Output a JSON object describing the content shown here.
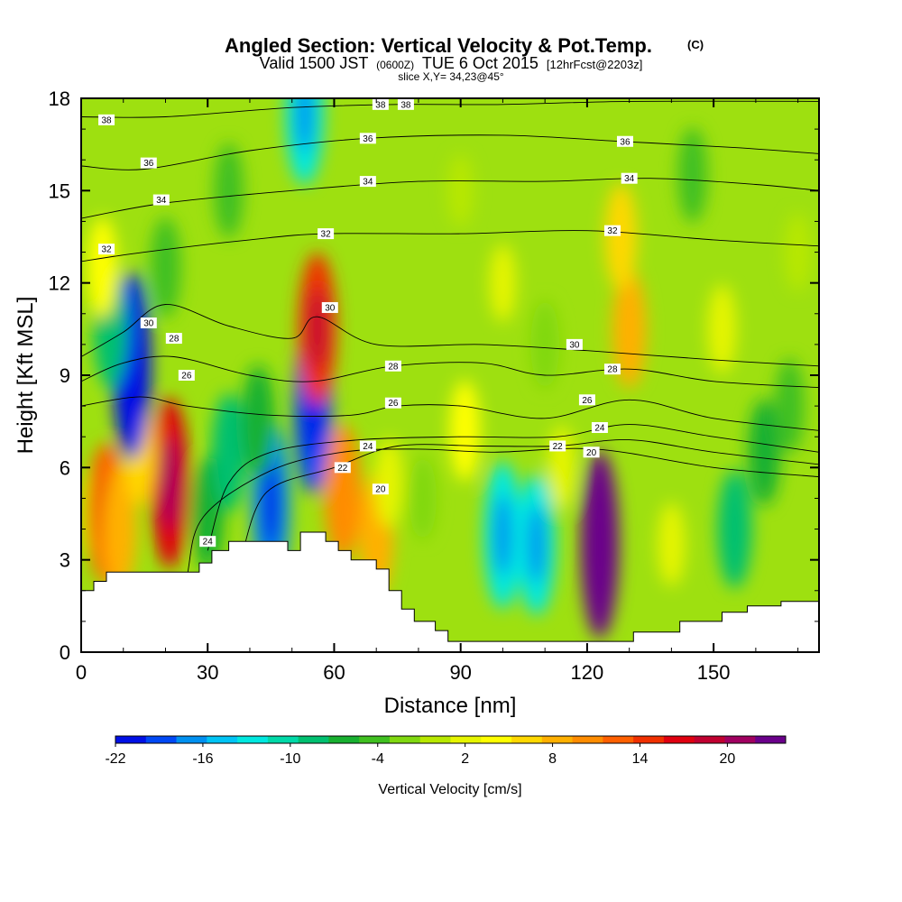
{
  "chart_data": {
    "type": "heatmap",
    "title": "Angled Section: Vertical Velocity & Pot.Temp.",
    "title_suffix": "(C)",
    "subtitle_parts": [
      "Valid 1500 JST",
      "(0600Z)",
      "TUE 6 Oct 2015",
      "[12hrFcst@2203z]"
    ],
    "slice_label": "slice X,Y= 34,23@45°",
    "xlabel": "Distance [nm]",
    "ylabel": "Height [Kft MSL]",
    "xlim": [
      0,
      175
    ],
    "ylim": [
      0,
      18
    ],
    "x_ticks": [
      "0",
      "30",
      "60",
      "90",
      "120",
      "150"
    ],
    "x_tick_values": [
      0,
      30,
      60,
      90,
      120,
      150
    ],
    "y_ticks": [
      "0",
      "3",
      "6",
      "9",
      "12",
      "15",
      "18"
    ],
    "y_tick_values": [
      0,
      3,
      6,
      9,
      12,
      15,
      18
    ],
    "colorbar": {
      "label": "Vertical Velocity [cm/s]",
      "tick_labels": [
        "-22",
        "-16",
        "-10",
        "-4",
        "2",
        "8",
        "14",
        "20"
      ],
      "tick_values": [
        -22,
        -16,
        -10,
        -4,
        2,
        8,
        14,
        20
      ],
      "min": -22,
      "max": 24,
      "colors": [
        "#0010e6",
        "#0048f5",
        "#0090f0",
        "#00c4f5",
        "#00e8e0",
        "#00d9a8",
        "#00c070",
        "#18b030",
        "#40c020",
        "#80d810",
        "#b8e800",
        "#e6f500",
        "#ffff00",
        "#ffd800",
        "#ffb000",
        "#ff8c00",
        "#ff6000",
        "#f03000",
        "#e00010",
        "#c00030",
        "#a00060",
        "#6a008a"
      ]
    },
    "terrain": [
      [
        0,
        2.0
      ],
      [
        3,
        2.0
      ],
      [
        3,
        2.3
      ],
      [
        6,
        2.3
      ],
      [
        6,
        2.6
      ],
      [
        28,
        2.6
      ],
      [
        28,
        2.9
      ],
      [
        31,
        2.9
      ],
      [
        31,
        3.3
      ],
      [
        35,
        3.3
      ],
      [
        35,
        3.6
      ],
      [
        49,
        3.6
      ],
      [
        49,
        3.3
      ],
      [
        52,
        3.3
      ],
      [
        52,
        3.9
      ],
      [
        58,
        3.9
      ],
      [
        58,
        3.6
      ],
      [
        61,
        3.6
      ],
      [
        61,
        3.3
      ],
      [
        64,
        3.3
      ],
      [
        64,
        3.0
      ],
      [
        70,
        3.0
      ],
      [
        70,
        2.7
      ],
      [
        73,
        2.7
      ],
      [
        73,
        2.0
      ],
      [
        76,
        2.0
      ],
      [
        76,
        1.4
      ],
      [
        79,
        1.4
      ],
      [
        79,
        1.0
      ],
      [
        84,
        1.0
      ],
      [
        84,
        0.7
      ],
      [
        87,
        0.7
      ],
      [
        87,
        0.35
      ],
      [
        131,
        0.35
      ],
      [
        131,
        0.65
      ],
      [
        142,
        0.65
      ],
      [
        142,
        1.0
      ],
      [
        152,
        1.0
      ],
      [
        152,
        1.3
      ],
      [
        158,
        1.3
      ],
      [
        158,
        1.5
      ],
      [
        166,
        1.5
      ],
      [
        166,
        1.65
      ],
      [
        175,
        1.65
      ]
    ],
    "velocity_cells": [
      {
        "x": 1,
        "z": 4.5,
        "w": -1
      },
      {
        "x": 6,
        "z": 4.5,
        "w": 12
      },
      {
        "x": 9,
        "z": 4.0,
        "w": 9
      },
      {
        "x": 21,
        "z": 5.5,
        "w": 17
      },
      {
        "x": 14,
        "z": 6.5,
        "w": 6
      },
      {
        "x": 12,
        "z": 9.3,
        "w": -20
      },
      {
        "x": 7,
        "z": 10.5,
        "w": -8
      },
      {
        "x": 5,
        "z": 12.5,
        "w": 5
      },
      {
        "x": 30,
        "z": 4.5,
        "w": -7
      },
      {
        "x": 35,
        "z": 6.5,
        "w": -8
      },
      {
        "x": 45,
        "z": 4.8,
        "w": -16
      },
      {
        "x": 42,
        "z": 7.5,
        "w": -7
      },
      {
        "x": 55,
        "z": 8.0,
        "w": -18
      },
      {
        "x": 56,
        "z": 10.5,
        "w": 14
      },
      {
        "x": 62,
        "z": 5.2,
        "w": 11
      },
      {
        "x": 70,
        "z": 3.8,
        "w": 9
      },
      {
        "x": 73,
        "z": 5.5,
        "w": 3
      },
      {
        "x": 81,
        "z": 5.0,
        "w": -2
      },
      {
        "x": 91,
        "z": 7.2,
        "w": 5
      },
      {
        "x": 100,
        "z": 3.8,
        "w": -13
      },
      {
        "x": 108,
        "z": 3.5,
        "w": -12
      },
      {
        "x": 114,
        "z": 6.0,
        "w": 2
      },
      {
        "x": 123,
        "z": 3.5,
        "w": 23
      },
      {
        "x": 130,
        "z": 10.5,
        "w": 8
      },
      {
        "x": 128,
        "z": 13.5,
        "w": 6
      },
      {
        "x": 140,
        "z": 3.5,
        "w": 2
      },
      {
        "x": 155,
        "z": 4.0,
        "w": -8
      },
      {
        "x": 162,
        "z": 6.5,
        "w": -6
      },
      {
        "x": 168,
        "z": 8.0,
        "w": -4
      },
      {
        "x": 152,
        "z": 10.5,
        "w": 3
      },
      {
        "x": 110,
        "z": 10.0,
        "w": -3
      },
      {
        "x": 100,
        "z": 12.0,
        "w": 1
      },
      {
        "x": 53,
        "z": 17.5,
        "w": -12
      },
      {
        "x": 35,
        "z": 15.0,
        "w": -4
      },
      {
        "x": 145,
        "z": 15.5,
        "w": -4
      },
      {
        "x": 20,
        "z": 12.5,
        "w": -5
      },
      {
        "x": 90,
        "z": 15.0,
        "w": 0
      },
      {
        "x": 170,
        "z": 13.0,
        "w": -1
      }
    ],
    "isentropes": [
      {
        "theta": 20,
        "label": "20",
        "points": [
          [
            22,
            0.3
          ],
          [
            25,
            2.4
          ],
          [
            29,
            4.4
          ],
          [
            45,
            5.9
          ],
          [
            62,
            6.5
          ],
          [
            80,
            6.6
          ],
          [
            98,
            6.5
          ],
          [
            122,
            6.6
          ],
          [
            150,
            6.0
          ],
          [
            175,
            5.7
          ]
        ]
      },
      {
        "theta": 22,
        "label": "22",
        "points": [
          [
            38,
            3.1
          ],
          [
            44,
            5.2
          ],
          [
            60,
            6.0
          ],
          [
            75,
            6.7
          ],
          [
            95,
            6.7
          ],
          [
            113,
            6.7
          ],
          [
            130,
            6.9
          ],
          [
            150,
            6.5
          ],
          [
            175,
            6.1
          ]
        ]
      },
      {
        "theta": 24,
        "label": "24",
        "points": [
          [
            30,
            3.3
          ],
          [
            35,
            5.5
          ],
          [
            45,
            6.5
          ],
          [
            66,
            6.9
          ],
          [
            90,
            7.0
          ],
          [
            113,
            7.0
          ],
          [
            130,
            7.4
          ],
          [
            150,
            7.0
          ],
          [
            175,
            6.5
          ]
        ]
      },
      {
        "theta": 26,
        "label": "26",
        "points": [
          [
            0,
            8.0
          ],
          [
            14,
            8.3
          ],
          [
            25,
            8.0
          ],
          [
            45,
            7.7
          ],
          [
            64,
            7.7
          ],
          [
            75,
            8.0
          ],
          [
            90,
            8.0
          ],
          [
            110,
            7.6
          ],
          [
            130,
            8.2
          ],
          [
            150,
            7.6
          ],
          [
            175,
            7.2
          ]
        ]
      },
      {
        "theta": 28,
        "label": "28",
        "points": [
          [
            0,
            8.8
          ],
          [
            10,
            9.4
          ],
          [
            22,
            9.6
          ],
          [
            40,
            9.0
          ],
          [
            55,
            8.8
          ],
          [
            74,
            9.3
          ],
          [
            95,
            9.4
          ],
          [
            110,
            9.0
          ],
          [
            130,
            9.2
          ],
          [
            150,
            8.8
          ],
          [
            175,
            8.6
          ]
        ]
      },
      {
        "theta": 30,
        "label": "30",
        "points": [
          [
            0,
            9.6
          ],
          [
            10,
            10.4
          ],
          [
            20,
            11.3
          ],
          [
            35,
            10.6
          ],
          [
            50,
            10.2
          ],
          [
            56,
            10.9
          ],
          [
            70,
            10.0
          ],
          [
            95,
            10.0
          ],
          [
            120,
            9.8
          ],
          [
            150,
            9.5
          ],
          [
            175,
            9.3
          ]
        ]
      },
      {
        "theta": 32,
        "label": "32",
        "points": [
          [
            0,
            12.7
          ],
          [
            15,
            13.0
          ],
          [
            40,
            13.4
          ],
          [
            58,
            13.6
          ],
          [
            90,
            13.6
          ],
          [
            120,
            13.7
          ],
          [
            150,
            13.4
          ],
          [
            175,
            13.2
          ]
        ]
      },
      {
        "theta": 34,
        "label": "34",
        "points": [
          [
            0,
            14.1
          ],
          [
            20,
            14.6
          ],
          [
            50,
            15.0
          ],
          [
            80,
            15.3
          ],
          [
            110,
            15.3
          ],
          [
            135,
            15.4
          ],
          [
            160,
            15.2
          ],
          [
            175,
            15.0
          ]
        ]
      },
      {
        "theta": 36,
        "label": "36",
        "points": [
          [
            0,
            15.8
          ],
          [
            15,
            15.7
          ],
          [
            40,
            16.3
          ],
          [
            68,
            16.7
          ],
          [
            100,
            16.8
          ],
          [
            128,
            16.6
          ],
          [
            155,
            16.4
          ],
          [
            175,
            16.2
          ]
        ]
      },
      {
        "theta": 38,
        "label": "38",
        "points": [
          [
            0,
            17.4
          ],
          [
            20,
            17.4
          ],
          [
            50,
            17.7
          ],
          [
            75,
            17.8
          ],
          [
            100,
            17.8
          ],
          [
            130,
            17.9
          ],
          [
            175,
            17.9
          ]
        ]
      }
    ],
    "contour_labels": [
      {
        "label": "38",
        "x": 6,
        "z": 17.3
      },
      {
        "label": "38",
        "x": 71,
        "z": 17.8
      },
      {
        "label": "38",
        "x": 77,
        "z": 17.8
      },
      {
        "label": "36",
        "x": 16,
        "z": 15.9
      },
      {
        "label": "36",
        "x": 68,
        "z": 16.7
      },
      {
        "label": "36",
        "x": 129,
        "z": 16.6
      },
      {
        "label": "34",
        "x": 19,
        "z": 14.7
      },
      {
        "label": "34",
        "x": 68,
        "z": 15.3
      },
      {
        "label": "34",
        "x": 130,
        "z": 15.4
      },
      {
        "label": "32",
        "x": 6,
        "z": 13.1
      },
      {
        "label": "32",
        "x": 58,
        "z": 13.6
      },
      {
        "label": "32",
        "x": 126,
        "z": 13.7
      },
      {
        "label": "30",
        "x": 16,
        "z": 10.7
      },
      {
        "label": "30",
        "x": 59,
        "z": 11.2
      },
      {
        "label": "30",
        "x": 117,
        "z": 10.0
      },
      {
        "label": "28",
        "x": 22,
        "z": 10.2
      },
      {
        "label": "28",
        "x": 74,
        "z": 9.3
      },
      {
        "label": "28",
        "x": 126,
        "z": 9.2
      },
      {
        "label": "26",
        "x": 25,
        "z": 9.0
      },
      {
        "label": "26",
        "x": 74,
        "z": 8.1
      },
      {
        "label": "26",
        "x": 120,
        "z": 8.2
      },
      {
        "label": "24",
        "x": 68,
        "z": 6.7
      },
      {
        "label": "24",
        "x": 123,
        "z": 7.3
      },
      {
        "label": "24",
        "x": 30,
        "z": 3.6
      },
      {
        "label": "22",
        "x": 62,
        "z": 6.0
      },
      {
        "label": "22",
        "x": 113,
        "z": 6.7
      },
      {
        "label": "20",
        "x": 71,
        "z": 5.3
      },
      {
        "label": "20",
        "x": 121,
        "z": 6.5
      }
    ]
  }
}
